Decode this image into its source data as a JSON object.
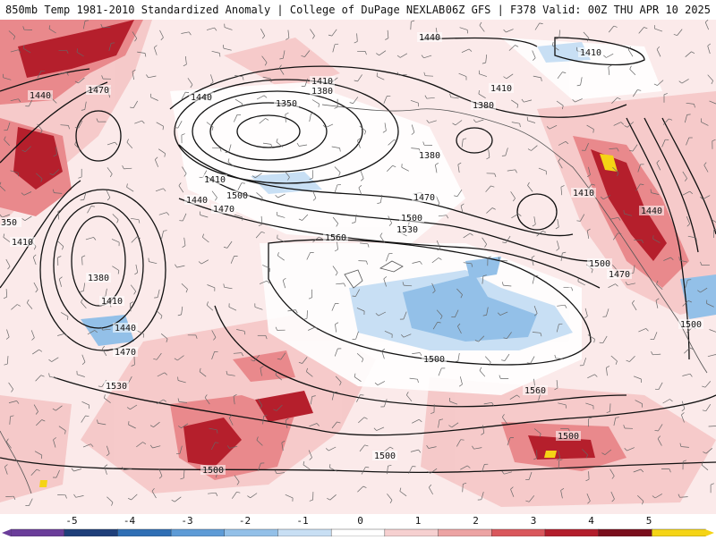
{
  "header": {
    "left_title": "850mb Temp 1981-2010 Standardized Anomaly | College of DuPage NEXLAB",
    "right_title": "06Z GFS | F378 Valid: 00Z THU APR 10 2025"
  },
  "colorbar": {
    "ticks": [
      "-5",
      "-4",
      "-3",
      "-2",
      "-1",
      "0",
      "1",
      "2",
      "3",
      "4",
      "5"
    ],
    "colors": [
      "#6a3d9a",
      "#1f3f7a",
      "#2f6fb5",
      "#5d9bd6",
      "#93c0e8",
      "#c8dff4",
      "#ffffff",
      "#f6d0d0",
      "#eca3a3",
      "#d9575c",
      "#b31e2c",
      "#7a0e1c",
      "#f5d415"
    ]
  },
  "contour_labels": [
    "1440",
    "1410",
    "1410",
    "1380",
    "1350",
    "1410",
    "1380",
    "1380",
    "1440",
    "1470",
    "1440",
    "1470",
    "1500",
    "1530",
    "1560",
    "1410",
    "1440",
    "1470",
    "1500",
    "350",
    "1410",
    "1380",
    "1410",
    "1440",
    "1470",
    "1500",
    "1560",
    "1530",
    "1500",
    "1500",
    "1500",
    "1410",
    "1440",
    "1470",
    "1500",
    "1500"
  ]
}
